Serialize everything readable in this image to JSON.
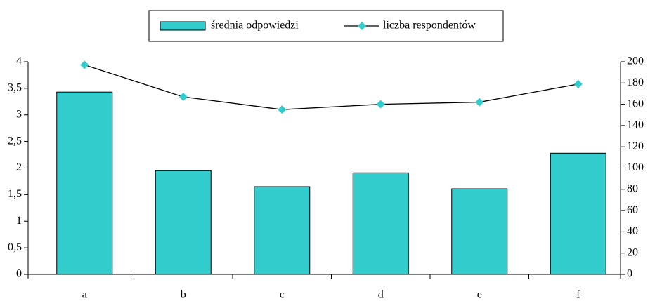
{
  "chart_data": {
    "type": "bar-line",
    "categories": [
      "a",
      "b",
      "c",
      "d",
      "e",
      "f"
    ],
    "series": [
      {
        "name": "średnia odpowiedzi",
        "type": "bar",
        "color": "#33cccc",
        "values": [
          3.43,
          1.95,
          1.65,
          1.91,
          1.61,
          2.28
        ]
      },
      {
        "name": "liczba respondentów",
        "type": "line",
        "color": "#000000",
        "marker_color": "#33cccc",
        "axis": "y2",
        "values": [
          197,
          167,
          155,
          160,
          162,
          179
        ]
      }
    ],
    "ylim": [
      0,
      4
    ],
    "yticks": [
      0,
      {
        "value": 0.5,
        "label": "0,5"
      },
      1,
      {
        "value": 1.5,
        "label": "1,5"
      },
      2,
      {
        "value": 2.5,
        "label": "2,5"
      },
      3,
      {
        "value": 3.5,
        "label": "3,5"
      },
      4
    ],
    "y2lim": [
      0,
      200
    ],
    "y2ticks": [
      0,
      20,
      40,
      60,
      80,
      100,
      120,
      140,
      160,
      180,
      200
    ],
    "legend": "top"
  }
}
